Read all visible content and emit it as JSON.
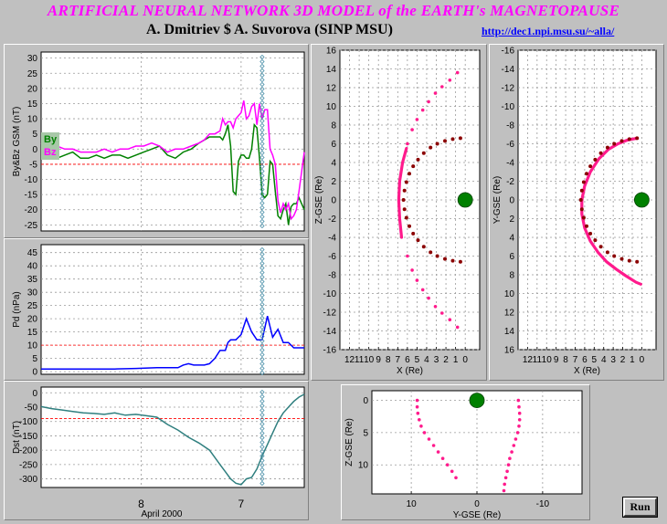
{
  "header": {
    "title": "ARTIFICIAL NEURAL NETWORK 3D MODEL of the EARTH's MAGNETOPAUSE",
    "authors": "A. Dmitriev $ A. Suvorova (SINP MSU)",
    "link": "http://dec1.npi.msu.su/~alla/"
  },
  "buttons": {
    "run": "Run"
  },
  "colors": {
    "by": "#008000",
    "bz": "#ff00ff",
    "pd": "#0000ff",
    "dst": "#2f7f7f",
    "magnetopause": "#ff1a8c",
    "dotted": "#8b0000",
    "earth": "#008000",
    "threshold": "#ff0000",
    "cursor": "#4a8fa8"
  },
  "chart_data": [
    {
      "id": "imf",
      "type": "line",
      "ylabel": "By&Bz GSM (nT)",
      "ylim": [
        -27,
        32
      ],
      "yticks": [
        30,
        25,
        20,
        15,
        10,
        5,
        0,
        -5,
        -10,
        -15,
        -20,
        -25
      ],
      "threshold": -5,
      "xlim": [
        0,
        100
      ],
      "cursor_x": 84,
      "series": [
        {
          "name": "By",
          "color": "#008000",
          "x": [
            0,
            3,
            6,
            9,
            12,
            15,
            18,
            21,
            24,
            27,
            30,
            33,
            36,
            39,
            42,
            45,
            48,
            51,
            54,
            57,
            60,
            62,
            64,
            66,
            68,
            69,
            70,
            71,
            72,
            73,
            74,
            75,
            76,
            77,
            78,
            79,
            80,
            81,
            82,
            83,
            84,
            85,
            86,
            87,
            88,
            89,
            90,
            91,
            92,
            93,
            94,
            95,
            96,
            97,
            98,
            100
          ],
          "values": [
            -2,
            -2,
            -3,
            -2,
            -1,
            -3,
            -3,
            -2,
            -3,
            -2,
            -2,
            -3,
            -2,
            -1,
            0,
            1,
            -2,
            -3,
            -1,
            0,
            2,
            3,
            4,
            4,
            4,
            3,
            5,
            8,
            1,
            -14,
            -15,
            -4,
            -2,
            -2,
            -3,
            -3,
            0,
            8,
            7,
            -3,
            -15,
            -16,
            -15,
            -4,
            -5,
            -14,
            -22,
            -23,
            -20,
            -18,
            -25,
            -19,
            -18,
            -18,
            -16,
            -20
          ]
        },
        {
          "name": "Bz",
          "color": "#ff00ff",
          "x": [
            0,
            3,
            6,
            9,
            12,
            15,
            18,
            21,
            24,
            27,
            30,
            33,
            36,
            39,
            42,
            45,
            48,
            51,
            54,
            57,
            60,
            62,
            64,
            66,
            68,
            69,
            70,
            71,
            72,
            73,
            74,
            75,
            76,
            77,
            78,
            79,
            80,
            81,
            82,
            83,
            84,
            85,
            86,
            87,
            88,
            89,
            90,
            91,
            92,
            93,
            94,
            95,
            96,
            97,
            98,
            100
          ],
          "values": [
            2,
            1,
            1,
            0,
            0,
            -1,
            -1,
            -1,
            0,
            -1,
            0,
            0,
            1,
            1,
            2,
            1,
            -1,
            0,
            0,
            1,
            2,
            3,
            5,
            5,
            6,
            10,
            8,
            9,
            9,
            7,
            10,
            11,
            12,
            16,
            10,
            11,
            14,
            15,
            8,
            15,
            10,
            13,
            13,
            0,
            -2,
            -5,
            -17,
            -21,
            -18,
            -20,
            -18,
            -23,
            -22,
            -20,
            -14,
            -1
          ]
        }
      ]
    },
    {
      "id": "pd",
      "type": "line",
      "ylabel": "Pd (nPa)",
      "ylim": [
        -1,
        48
      ],
      "yticks": [
        45,
        40,
        35,
        30,
        25,
        20,
        15,
        10,
        5,
        0
      ],
      "threshold": 10,
      "xlim": [
        0,
        100
      ],
      "cursor_x": 84,
      "series": [
        {
          "name": "Pd",
          "color": "#0000ff",
          "x": [
            0,
            10,
            20,
            28,
            36,
            44,
            52,
            54,
            56,
            58,
            60,
            62,
            64,
            66,
            68,
            70,
            71,
            72,
            74,
            76,
            78,
            80,
            82,
            84,
            86,
            88,
            90,
            92,
            94,
            96,
            98,
            100
          ],
          "values": [
            1,
            1,
            1,
            1,
            1.2,
            1.5,
            1.5,
            2.5,
            3,
            2.5,
            2.5,
            2.5,
            3,
            5,
            8,
            8,
            11,
            12,
            12,
            14,
            20,
            15,
            12,
            12,
            21,
            13,
            16,
            11,
            11,
            9,
            9,
            9
          ]
        }
      ]
    },
    {
      "id": "dst",
      "type": "line",
      "ylabel": "Dst (nT)",
      "ylim": [
        -330,
        20
      ],
      "yticks": [
        0,
        -50,
        -100,
        -150,
        -200,
        -250,
        -300
      ],
      "threshold": -90,
      "xlim": [
        0,
        100
      ],
      "cursor_x": 84,
      "xlabel": "April 2000",
      "xticks": [
        {
          "x": 38,
          "label": "8"
        },
        {
          "x": 76,
          "label": "7"
        }
      ],
      "series": [
        {
          "name": "Dst",
          "color": "#2f7f7f",
          "x": [
            0,
            4,
            8,
            12,
            16,
            20,
            24,
            28,
            32,
            36,
            40,
            44,
            48,
            52,
            56,
            60,
            64,
            68,
            70,
            72,
            74,
            76,
            78,
            80,
            82,
            84,
            86,
            88,
            90,
            92,
            94,
            96,
            98,
            100
          ],
          "values": [
            -48,
            -55,
            -60,
            -65,
            -70,
            -72,
            -75,
            -70,
            -78,
            -75,
            -80,
            -85,
            -110,
            -130,
            -155,
            -175,
            -200,
            -250,
            -275,
            -300,
            -315,
            -320,
            -300,
            -295,
            -265,
            -220,
            -180,
            -140,
            -100,
            -70,
            -50,
            -30,
            -15,
            -5
          ]
        }
      ]
    },
    {
      "id": "xz",
      "type": "scatter",
      "xlabel": "X (Re)",
      "ylabel": "Z-GSE (Re)",
      "xlim": [
        13,
        -1.5
      ],
      "ylim": [
        16,
        -16
      ],
      "xticks": [
        12,
        11,
        10,
        9,
        8,
        7,
        6,
        5,
        4,
        3,
        2,
        1,
        0
      ],
      "xticklabels": [
        "12",
        "11",
        "10",
        "9",
        "8",
        "7",
        "6",
        "5",
        "4",
        "3",
        "2",
        "1",
        "0"
      ],
      "yticks": [
        16,
        14,
        12,
        10,
        8,
        6,
        4,
        2,
        0,
        -2,
        -4,
        -6,
        -8,
        -10,
        -12,
        -14,
        -16
      ],
      "earth": [
        0,
        0
      ],
      "series": [
        {
          "name": "",
          "kind": "thick",
          "color": "#ff1a8c",
          "points": [
            [
              6.6,
              -4
            ],
            [
              6.8,
              -2
            ],
            [
              6.9,
              0
            ],
            [
              6.8,
              2
            ],
            [
              6.5,
              4
            ],
            [
              6.1,
              5.5
            ]
          ]
        },
        {
          "name": "",
          "kind": "dots",
          "color": "#ff1a8c",
          "points": [
            [
              6,
              -6
            ],
            [
              5.5,
              -7.5
            ],
            [
              5,
              -8.6
            ],
            [
              4.4,
              -9.6
            ],
            [
              3.8,
              -10.5
            ],
            [
              3.1,
              -11.4
            ],
            [
              2.4,
              -12.1
            ],
            [
              1.6,
              -12.8
            ],
            [
              0.8,
              -13.6
            ],
            [
              6,
              6
            ],
            [
              5.5,
              7.5
            ],
            [
              5,
              8.6
            ],
            [
              4.4,
              9.6
            ],
            [
              3.8,
              10.5
            ],
            [
              3.1,
              11.4
            ],
            [
              2.4,
              12.1
            ],
            [
              1.6,
              12.8
            ],
            [
              0.8,
              13.6
            ]
          ]
        },
        {
          "name": "",
          "kind": "ring",
          "color": "#8b0000",
          "points": [
            [
              0.5,
              -6.6
            ],
            [
              1.3,
              -6.5
            ],
            [
              2.1,
              -6.3
            ],
            [
              2.9,
              -6
            ],
            [
              3.6,
              -5.6
            ],
            [
              4.3,
              -5
            ],
            [
              4.9,
              -4.3
            ],
            [
              5.4,
              -3.6
            ],
            [
              5.8,
              -2.8
            ],
            [
              6.1,
              -1.9
            ],
            [
              6.3,
              -1
            ],
            [
              6.4,
              0
            ],
            [
              6.3,
              1
            ],
            [
              6.1,
              1.9
            ],
            [
              5.8,
              2.8
            ],
            [
              5.4,
              3.6
            ],
            [
              4.9,
              4.3
            ],
            [
              4.3,
              5
            ],
            [
              3.6,
              5.6
            ],
            [
              2.9,
              6
            ],
            [
              2.1,
              6.3
            ],
            [
              1.3,
              6.5
            ],
            [
              0.5,
              6.6
            ]
          ]
        }
      ]
    },
    {
      "id": "xy",
      "type": "scatter",
      "xlabel": "X (Re)",
      "ylabel": "Y-GSE (Re)",
      "xlim": [
        13,
        -1.5
      ],
      "ylim": [
        -16,
        16
      ],
      "xticks": [
        12,
        11,
        10,
        9,
        8,
        7,
        6,
        5,
        4,
        3,
        2,
        1,
        0
      ],
      "xticklabels": [
        "12",
        "11",
        "10",
        "9",
        "8",
        "7",
        "6",
        "5",
        "4",
        "3",
        "2",
        "1",
        "0"
      ],
      "yticks": [
        -16,
        -14,
        -12,
        -10,
        -8,
        -6,
        -4,
        -2,
        0,
        2,
        4,
        6,
        8,
        10,
        12,
        14,
        16
      ],
      "earth": [
        0,
        0
      ],
      "series": [
        {
          "name": "",
          "kind": "thick",
          "color": "#ff1a8c",
          "points": [
            [
              0.5,
              -6.6
            ],
            [
              1.5,
              -6.4
            ],
            [
              2.5,
              -6
            ],
            [
              3.5,
              -5.4
            ],
            [
              4.5,
              -4.4
            ],
            [
              5.4,
              -3
            ],
            [
              6,
              -1.5
            ],
            [
              6.3,
              0
            ],
            [
              6.3,
              1.5
            ],
            [
              6,
              3
            ],
            [
              5.4,
              4.4
            ],
            [
              4.6,
              5.6
            ],
            [
              3.7,
              6.6
            ],
            [
              2.7,
              7.4
            ],
            [
              1.7,
              8.1
            ],
            [
              0.6,
              8.8
            ],
            [
              0.1,
              9
            ]
          ]
        },
        {
          "name": "",
          "kind": "ring",
          "color": "#8b0000",
          "points": [
            [
              0.5,
              -6.6
            ],
            [
              1.3,
              -6.5
            ],
            [
              2.1,
              -6.3
            ],
            [
              2.9,
              -6
            ],
            [
              3.6,
              -5.6
            ],
            [
              4.3,
              -5
            ],
            [
              4.9,
              -4.3
            ],
            [
              5.4,
              -3.6
            ],
            [
              5.8,
              -2.8
            ],
            [
              6.1,
              -1.9
            ],
            [
              6.3,
              -1
            ],
            [
              6.4,
              0
            ],
            [
              6.3,
              1
            ],
            [
              6.1,
              1.9
            ],
            [
              5.8,
              2.8
            ],
            [
              5.4,
              3.6
            ],
            [
              4.9,
              4.3
            ],
            [
              4.3,
              5
            ],
            [
              3.6,
              5.6
            ],
            [
              2.9,
              6
            ],
            [
              2.1,
              6.3
            ],
            [
              1.3,
              6.5
            ],
            [
              0.5,
              6.6
            ]
          ]
        }
      ]
    },
    {
      "id": "yz",
      "type": "scatter",
      "xlabel": "Y-GSE (Re)",
      "ylabel": "Z-GSE (Re)",
      "xlim": [
        16,
        -16
      ],
      "ylim": [
        -1.5,
        14.5
      ],
      "xticks": [
        10,
        0,
        -10
      ],
      "xticklabels": [
        "10",
        "0",
        "-10"
      ],
      "yticks": [
        0,
        5,
        10
      ],
      "earth": [
        0,
        0
      ],
      "series": [
        {
          "name": "",
          "kind": "dots",
          "color": "#ff1a8c",
          "points": [
            [
              9.1,
              0
            ],
            [
              9.1,
              1
            ],
            [
              9,
              2
            ],
            [
              8.8,
              3
            ],
            [
              8.5,
              4
            ],
            [
              8,
              5
            ],
            [
              7.3,
              6
            ],
            [
              6.6,
              7
            ],
            [
              5.9,
              8
            ],
            [
              5.2,
              9
            ],
            [
              4.5,
              10
            ],
            [
              3.8,
              11
            ],
            [
              3.2,
              12
            ]
          ]
        },
        {
          "name": "",
          "kind": "dots",
          "color": "#ff1a8c",
          "points": [
            [
              -6.3,
              0
            ],
            [
              -6.4,
              1
            ],
            [
              -6.5,
              2
            ],
            [
              -6.5,
              3
            ],
            [
              -6.4,
              4
            ],
            [
              -6.2,
              5
            ],
            [
              -5.9,
              6
            ],
            [
              -5.6,
              7
            ],
            [
              -5.3,
              8
            ],
            [
              -5,
              9
            ],
            [
              -4.8,
              10
            ],
            [
              -4.6,
              11
            ],
            [
              -4.4,
              12
            ],
            [
              -4.2,
              13
            ],
            [
              -4.1,
              14
            ]
          ]
        }
      ]
    }
  ]
}
